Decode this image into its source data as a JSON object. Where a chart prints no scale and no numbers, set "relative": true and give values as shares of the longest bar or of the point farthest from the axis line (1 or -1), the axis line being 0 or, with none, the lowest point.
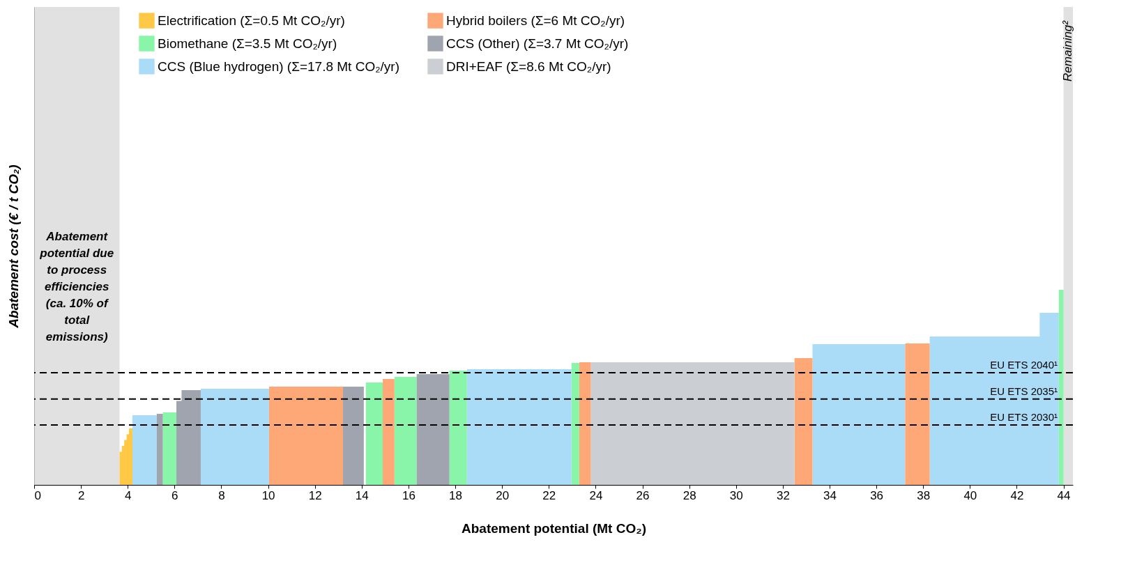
{
  "chart_data": {
    "type": "area",
    "relative": true,
    "xlabel": "Abatement potential (Mt CO₂)",
    "ylabel": "Abatement cost (€ / t CO₂)",
    "xlim": [
      0,
      44.4
    ],
    "xticks": [
      0,
      2,
      4,
      6,
      8,
      10,
      12,
      14,
      16,
      18,
      20,
      22,
      24,
      26,
      28,
      30,
      32,
      34,
      36,
      38,
      40,
      42,
      44
    ],
    "legend": "top left",
    "series": [
      {
        "name": "Electrification (Σ=0.5 Mt CO₂/yr)",
        "color": "#ffc845",
        "x": [
          3.65,
          3.75,
          3.85,
          3.95,
          4.05,
          4.2
        ],
        "values": [
          0.17,
          0.2,
          0.23,
          0.26,
          0.29,
          0
        ]
      },
      {
        "name": "Biomethane (Σ=3.5 Mt CO₂/yr)",
        "color": "#88f5a8",
        "x": [
          5.5,
          6.08,
          14.18,
          14.9,
          15.4,
          16.35,
          17.75,
          18.5,
          22.97,
          23.3,
          43.8,
          44.0
        ],
        "values": [
          0.371,
          0,
          0.525,
          0,
          0.554,
          0,
          0.586,
          0,
          0.625,
          0,
          1,
          0
        ]
      },
      {
        "name": "CCS (Blue hydrogen) (Σ=17.8 Mt CO₂/yr)",
        "color": "#aadcf7",
        "x": [
          4.2,
          5.24,
          7.12,
          10.04,
          18.5,
          22.97,
          33.27,
          37.23,
          38.28,
          42.98,
          43.8
        ],
        "values": [
          0.357,
          0,
          0.493,
          0,
          0.593,
          0,
          0.721,
          0,
          0.761,
          0.882,
          0
        ]
      },
      {
        "name": "Hybrid boilers (Σ=6 Mt CO₂/yr)",
        "color": "#fda876",
        "x": [
          10.04,
          13.2,
          14.9,
          15.4,
          23.3,
          23.8,
          32.5,
          33.27,
          37.23,
          38.28
        ],
        "values": [
          0.504,
          0,
          0.543,
          0,
          0.629,
          0,
          0.65,
          0,
          0.725,
          0
        ]
      },
      {
        "name": "CCS (Other) (Σ=3.7 Mt CO₂/yr)",
        "color": "#a0a4ae",
        "x": [
          5.24,
          5.5,
          6.08,
          6.3,
          7.12,
          13.2,
          14.09,
          16.35,
          17.75
        ],
        "values": [
          0.364,
          0,
          0.43,
          0.486,
          0,
          0.504,
          0,
          0.568,
          0
        ]
      },
      {
        "name": "DRI+EAF (Σ=8.6 Mt CO₂/yr)",
        "color": "#cbced3",
        "x": [
          23.8,
          32.5
        ],
        "values": [
          0.629,
          0
        ]
      }
    ],
    "ref_lines": [
      {
        "axis": "y",
        "value": 0.575,
        "label": "EU ETS 2040¹",
        "line_style": "dashed",
        "color": "#000000"
      },
      {
        "axis": "y",
        "value": 0.44,
        "label": "EU ETS 2035¹",
        "line_style": "dashed",
        "color": "#000000"
      },
      {
        "axis": "y",
        "value": 0.307,
        "label": "EU ETS 2030¹",
        "line_style": "dashed",
        "color": "#000000"
      }
    ],
    "bands": [
      {
        "axis": "x",
        "from": 0,
        "to": 3.65,
        "label": "Abatement potential due to process efficiencies (ca. 10% of total emissions)",
        "color": "#d9d9d9"
      },
      {
        "axis": "x",
        "from": 44.0,
        "to": 44.4,
        "label": "Remaining²",
        "color": "#d9d9d9"
      }
    ]
  }
}
